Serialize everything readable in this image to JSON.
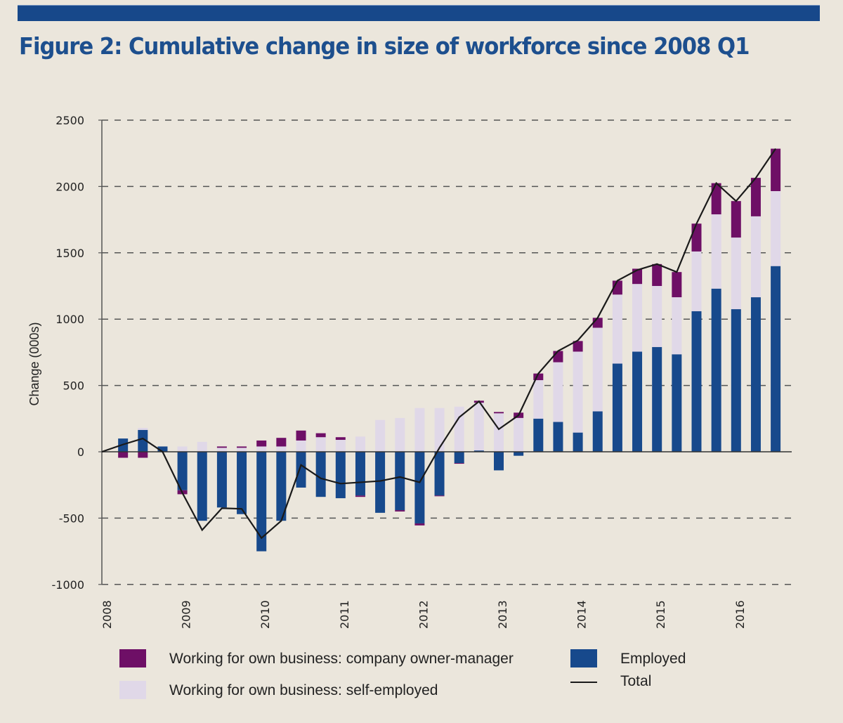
{
  "title": "Figure 2: Cumulative change in size of workforce since 2008 Q1",
  "colors": {
    "banner": "#17488a",
    "title": "#1d4f8e",
    "owner_manager": "#6e0f66",
    "self_employed": "#e0d8e8",
    "employed": "#17498c",
    "total": "#1a1a1a",
    "background": "#ebe6dc"
  },
  "legend": {
    "owner_manager": "Working for own business: company owner-manager",
    "self_employed": "Working for own business: self-employed",
    "employed": "Employed",
    "total": "Total"
  },
  "chart_data": {
    "type": "bar",
    "stacked": true,
    "title": "Figure 2: Cumulative change in size of workforce since 2008 Q1",
    "xlabel": "",
    "ylabel": "Change (000s)",
    "ylim": [
      -1000,
      2500
    ],
    "yticks": [
      2500,
      2000,
      1500,
      1000,
      500,
      0,
      -500,
      -1000
    ],
    "xtick_labels": [
      "2008",
      "2009",
      "2010",
      "2011",
      "2012",
      "2013",
      "2014",
      "2015",
      "2016"
    ],
    "grid": "horizontal dashed",
    "legend_position": "bottom",
    "categories": [
      "2008 Q1",
      "2008 Q2",
      "2008 Q3",
      "2008 Q4",
      "2009 Q1",
      "2009 Q2",
      "2009 Q3",
      "2009 Q4",
      "2010 Q1",
      "2010 Q2",
      "2010 Q3",
      "2010 Q4",
      "2011 Q1",
      "2011 Q2",
      "2011 Q3",
      "2011 Q4",
      "2012 Q1",
      "2012 Q2",
      "2012 Q3",
      "2012 Q4",
      "2013 Q1",
      "2013 Q2",
      "2013 Q3",
      "2013 Q4",
      "2014 Q1",
      "2014 Q2",
      "2014 Q3",
      "2014 Q4",
      "2015 Q1",
      "2015 Q2",
      "2015 Q3",
      "2015 Q4",
      "2016 Q1",
      "2016 Q2",
      "2016 Q3"
    ],
    "series": [
      {
        "name": "Employed",
        "type": "bar",
        "values": [
          0,
          100,
          165,
          40,
          -290,
          -520,
          -420,
          -470,
          -750,
          -520,
          -270,
          -340,
          -350,
          -330,
          -460,
          -440,
          -540,
          -330,
          -85,
          10,
          -140,
          -30,
          250,
          225,
          145,
          305,
          665,
          755,
          790,
          735,
          1060,
          1230,
          1075,
          1165,
          1400
        ]
      },
      {
        "name": "Working for own business: self-employed",
        "type": "bar",
        "values": [
          0,
          0,
          15,
          0,
          40,
          75,
          30,
          30,
          40,
          40,
          85,
          110,
          90,
          115,
          240,
          255,
          330,
          330,
          340,
          360,
          290,
          255,
          290,
          450,
          610,
          630,
          520,
          510,
          460,
          430,
          450,
          560,
          540,
          610,
          565
        ]
      },
      {
        "name": "Working for own business: company owner-manager",
        "type": "bar",
        "values": [
          0,
          -45,
          -45,
          0,
          -30,
          0,
          10,
          10,
          45,
          65,
          75,
          30,
          20,
          -10,
          0,
          -10,
          -15,
          -5,
          -5,
          15,
          10,
          40,
          50,
          85,
          80,
          75,
          105,
          115,
          165,
          190,
          210,
          235,
          275,
          290,
          320
        ]
      },
      {
        "name": "Total",
        "type": "line",
        "values": [
          0,
          55,
          100,
          0,
          -310,
          -590,
          -425,
          -430,
          -650,
          -520,
          -100,
          -200,
          -240,
          -230,
          -220,
          -190,
          -230,
          30,
          260,
          380,
          170,
          275,
          590,
          760,
          840,
          1010,
          1290,
          1370,
          1415,
          1355,
          1720,
          2025,
          1890,
          2065,
          2285
        ]
      }
    ]
  }
}
